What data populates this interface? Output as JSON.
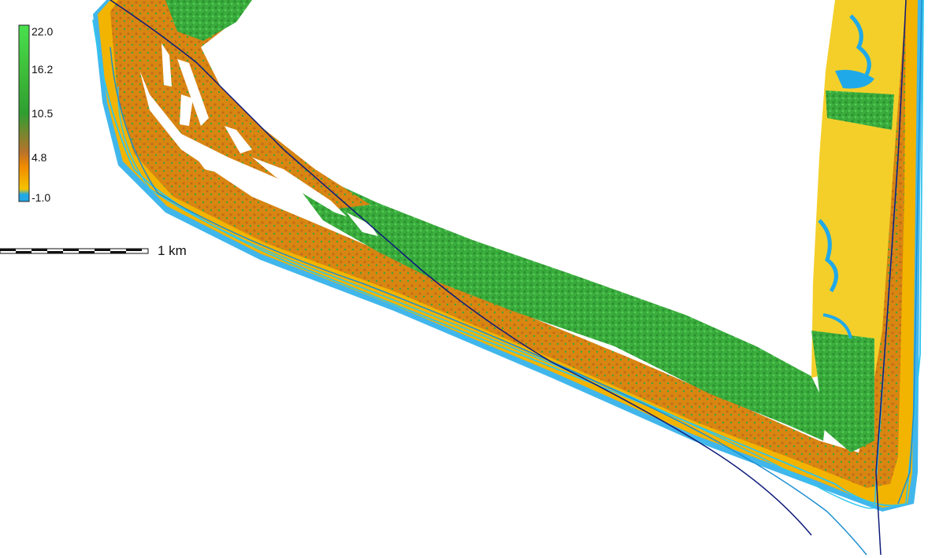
{
  "legend": {
    "labels": [
      "22.0",
      "16.2",
      "10.5",
      "4.8",
      "-1.0"
    ],
    "colors": [
      "#49e14f",
      "#3fbf3a",
      "#2f9e32",
      "#b9722a",
      "#f08a00",
      "#f5c400",
      "#21a8e6"
    ]
  },
  "scale_bar": {
    "label": "1 km"
  },
  "colors": {
    "forest": "#35a83a",
    "forest_light": "#4bc34e",
    "dune": "#d9800f",
    "beach": "#f2b400",
    "sand_light": "#f4cf2a",
    "water": "#20a9e8",
    "shoreline_light": "#2fc6ee",
    "shoreline_dark": "#0d1a7a"
  }
}
